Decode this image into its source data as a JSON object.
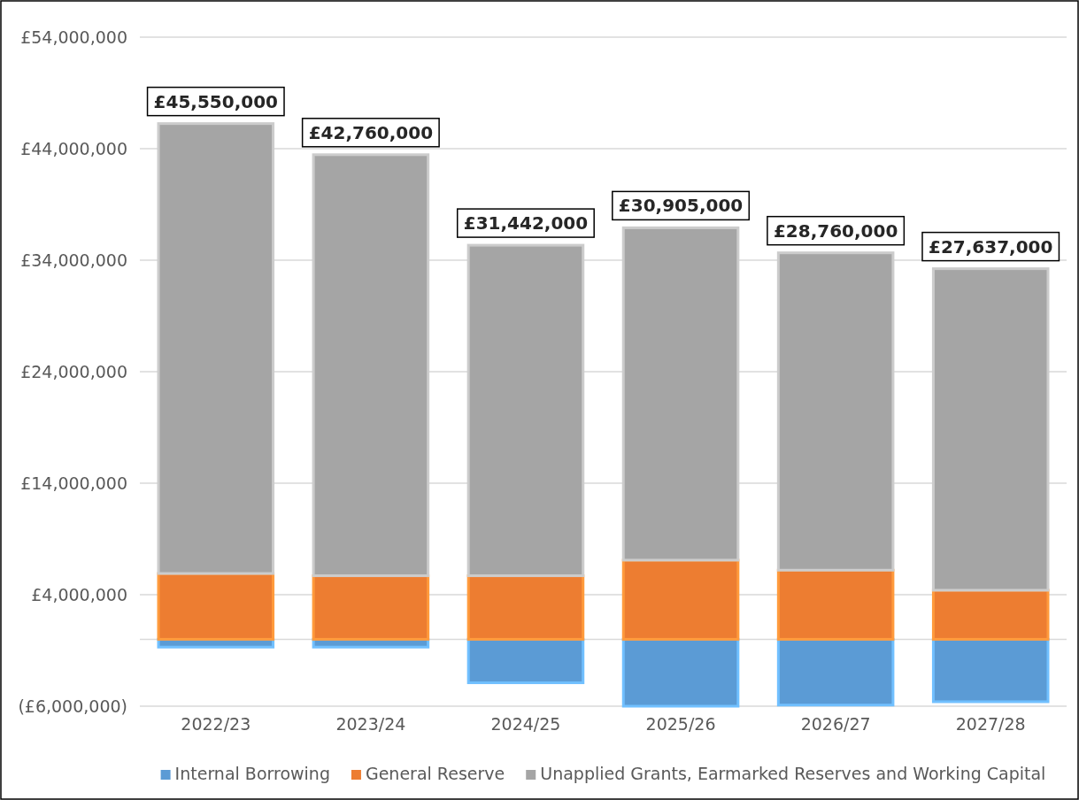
{
  "chart_data": {
    "type": "bar",
    "stacked": true,
    "categories": [
      "2022/23",
      "2023/24",
      "2024/25",
      "2025/26",
      "2026/27",
      "2027/28"
    ],
    "series": [
      {
        "name": "Internal Borrowing",
        "color": "#5b9bd5",
        "values": [
          -700000,
          -700000,
          -3900000,
          -6000000,
          -5900000,
          -5600000
        ]
      },
      {
        "name": "General Reserve",
        "color": "#ed7d31",
        "values": [
          5900000,
          5700000,
          5700000,
          7100000,
          6200000,
          4400000
        ]
      },
      {
        "name": "Unapplied Grants, Earmarked Reserves and Working Capital",
        "color": "#a5a5a5",
        "values": [
          40350000,
          37760000,
          29642000,
          29805000,
          28460000,
          28837000
        ]
      }
    ],
    "totals": [
      "£45,550,000",
      "£42,760,000",
      "£31,442,000",
      "£30,905,000",
      "£28,760,000",
      "£27,637,000"
    ],
    "ylim": [
      -6000000,
      54000000
    ],
    "yticks": [
      {
        "value": -6000000,
        "label": "(£6,000,000)"
      },
      {
        "value": 4000000,
        "label": "£4,000,000"
      },
      {
        "value": 14000000,
        "label": "£14,000,000"
      },
      {
        "value": 24000000,
        "label": "£24,000,000"
      },
      {
        "value": 34000000,
        "label": "£34,000,000"
      },
      {
        "value": 44000000,
        "label": "£44,000,000"
      },
      {
        "value": 54000000,
        "label": "£54,000,000"
      }
    ],
    "grid": "y",
    "legend": "bottom"
  }
}
